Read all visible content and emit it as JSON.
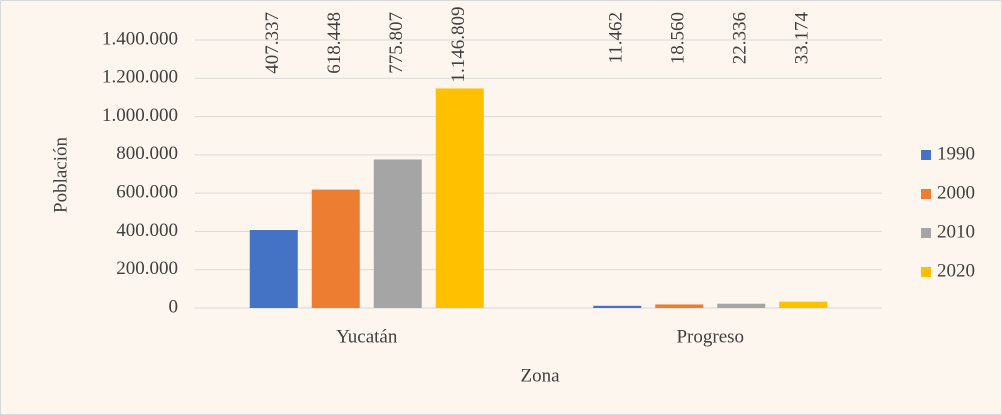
{
  "chart_data": {
    "type": "bar",
    "categories": [
      "Yucatán",
      "Progreso"
    ],
    "x_label": "Zona",
    "y_label": "Población",
    "series": [
      {
        "name": "1990",
        "color": "#4472c4",
        "values": [
          407337,
          11462
        ],
        "value_labels": [
          "407.337",
          "11.462"
        ]
      },
      {
        "name": "2000",
        "color": "#ed7d31",
        "values": [
          618448,
          18560
        ],
        "value_labels": [
          "618.448",
          "18.560"
        ]
      },
      {
        "name": "2010",
        "color": "#a5a5a5",
        "values": [
          775807,
          22336
        ],
        "value_labels": [
          "775.807",
          "22.336"
        ]
      },
      {
        "name": "2020",
        "color": "#ffc000",
        "values": [
          1146809,
          33174
        ],
        "value_labels": [
          "1.146.809",
          "33.174"
        ]
      }
    ],
    "ylim": [
      0,
      1400000
    ],
    "yticks": [
      0,
      {
        "value": 200000,
        "label": "200.000"
      },
      {
        "value": 400000,
        "label": "400.000"
      },
      {
        "value": 600000,
        "label": "600.000"
      },
      {
        "value": 800000,
        "label": "800.000"
      },
      {
        "value": 1000000,
        "label": "1.000.000"
      },
      {
        "value": 1200000,
        "label": "1.200.000"
      },
      {
        "value": 1400000,
        "label": "1.400.000"
      }
    ],
    "grid": true,
    "legend": "right"
  }
}
